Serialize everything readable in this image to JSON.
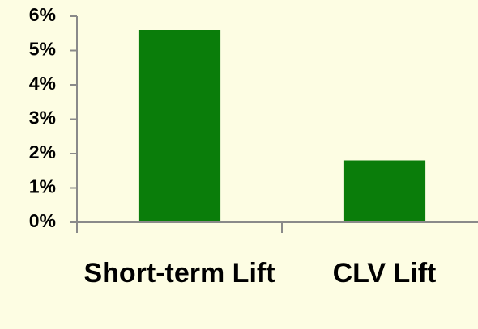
{
  "chart_data": {
    "type": "bar",
    "categories": [
      "Short-term Lift",
      "CLV Lift"
    ],
    "values": [
      5.6,
      1.8
    ],
    "color": "#0a7d0a",
    "ylim": [
      0,
      6
    ],
    "yticks": [
      {
        "value": 0,
        "label": "0%"
      },
      {
        "value": 1,
        "label": "1%"
      },
      {
        "value": 2,
        "label": "2%"
      },
      {
        "value": 3,
        "label": "3%"
      },
      {
        "value": 4,
        "label": "4%"
      },
      {
        "value": 5,
        "label": "5%"
      },
      {
        "value": 6,
        "label": "6%"
      }
    ],
    "grid": false
  }
}
